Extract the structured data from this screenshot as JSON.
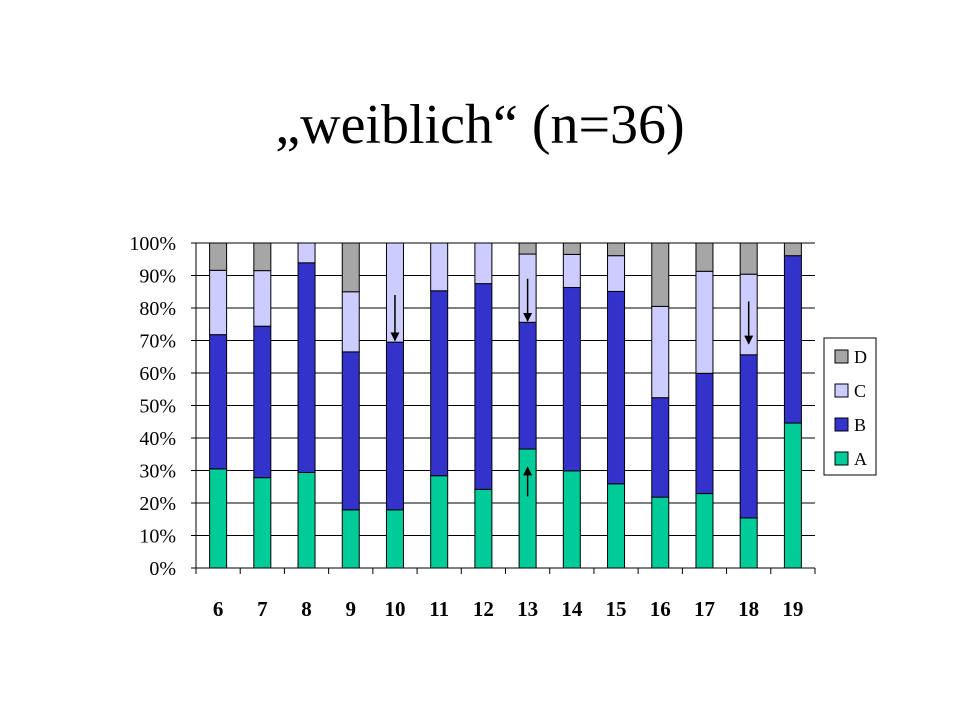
{
  "slide": {
    "title": "„weiblich“ (n=36)"
  },
  "chart_data": {
    "type": "bar",
    "stacked": true,
    "percent": true,
    "title": "",
    "xlabel": "",
    "ylabel": "",
    "categories": [
      "6",
      "7",
      "8",
      "9",
      "10",
      "11",
      "12",
      "13",
      "14",
      "15",
      "16",
      "17",
      "18",
      "19"
    ],
    "ylim": [
      0,
      100
    ],
    "yticks": [
      "0%",
      "10%",
      "20%",
      "30%",
      "40%",
      "50%",
      "60%",
      "70%",
      "80%",
      "90%",
      "100%"
    ],
    "grid": true,
    "legend": "right",
    "series": [
      {
        "name": "A",
        "color": "#00CC99",
        "values": [
          30.5,
          27.8,
          29.4,
          17.9,
          17.9,
          28.4,
          24.2,
          36.6,
          29.9,
          25.9,
          21.8,
          22.9,
          15.4,
          44.6
        ]
      },
      {
        "name": "B",
        "color": "#3333CC",
        "values": [
          41.3,
          46.6,
          64.5,
          48.6,
          51.6,
          56.9,
          63.3,
          39.0,
          56.4,
          59.2,
          30.6,
          37.0,
          50.2,
          51.5
        ]
      },
      {
        "name": "C",
        "color": "#CCCCFF",
        "values": [
          19.8,
          17.1,
          6.1,
          18.5,
          30.5,
          14.7,
          12.5,
          21.0,
          10.2,
          11.0,
          28.1,
          31.4,
          24.8,
          0.0
        ]
      },
      {
        "name": "D",
        "color": "#A6A6A6",
        "values": [
          8.4,
          8.5,
          0.0,
          15.0,
          0.0,
          0.0,
          0.0,
          3.4,
          3.5,
          3.9,
          19.5,
          8.7,
          9.6,
          3.9
        ]
      }
    ],
    "annotations": [
      {
        "type": "arrow",
        "direction": "down",
        "category": "10",
        "from": 84,
        "to": 70
      },
      {
        "type": "arrow",
        "direction": "down",
        "category": "13",
        "from": 89,
        "to": 76
      },
      {
        "type": "arrow",
        "direction": "up",
        "category": "13",
        "from": 22,
        "to": 31
      },
      {
        "type": "arrow",
        "direction": "down",
        "category": "18",
        "from": 82,
        "to": 69
      }
    ]
  }
}
